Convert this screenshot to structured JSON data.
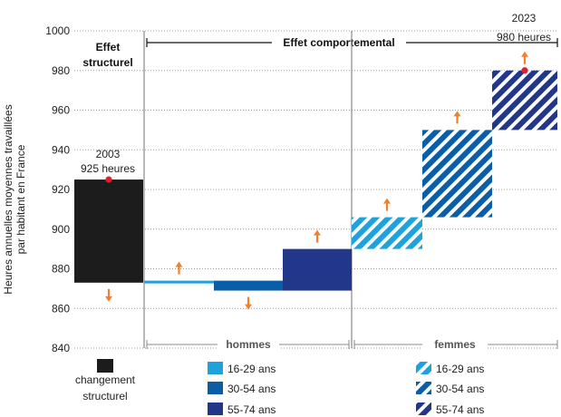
{
  "chart_data": {
    "type": "waterfall",
    "ylabel_line1": "Heures annuelles moyennes travaillées",
    "ylabel_line2": "par habitant en France",
    "ylim": [
      840,
      1000
    ],
    "yticks": [
      840,
      860,
      880,
      900,
      920,
      940,
      960,
      980,
      1000
    ],
    "grid": "horizontal dotted",
    "headers": {
      "structural_line1": "Effet",
      "structural_line2": "structurel",
      "behavioral": "Effet comportemental"
    },
    "groups": {
      "men": "hommes",
      "women": "femmes"
    },
    "start": {
      "label_year": "2003",
      "label_hours": "925 heures",
      "value": 925
    },
    "end": {
      "label_year": "2023",
      "label_hours": "980 heures",
      "value": 980
    },
    "steps": [
      {
        "key": "structurel",
        "from": 925,
        "to": 873,
        "color": "#1c1c1c",
        "pattern": "solid",
        "direction": "down"
      },
      {
        "key": "hommes_16_29",
        "from": 873,
        "to": 874,
        "color": "#1fa2dc",
        "pattern": "solid",
        "direction": "up"
      },
      {
        "key": "hommes_30_54",
        "from": 874,
        "to": 869,
        "color": "#0a5ea8",
        "pattern": "solid",
        "direction": "down"
      },
      {
        "key": "hommes_55_74",
        "from": 869,
        "to": 890,
        "color": "#22368a",
        "pattern": "solid",
        "direction": "up"
      },
      {
        "key": "femmes_16_29",
        "from": 890,
        "to": 906,
        "color": "#1fa2dc",
        "pattern": "hatched",
        "direction": "up"
      },
      {
        "key": "femmes_30_54",
        "from": 906,
        "to": 950,
        "color": "#0a5ea8",
        "pattern": "hatched",
        "direction": "up"
      },
      {
        "key": "femmes_55_74",
        "from": 950,
        "to": 980,
        "color": "#22368a",
        "pattern": "hatched",
        "direction": "up"
      }
    ],
    "legend": {
      "structural_line1": "changement",
      "structural_line2": "structurel",
      "men": [
        {
          "label": "16-29 ans",
          "color": "#1fa2dc",
          "pattern": "solid"
        },
        {
          "label": "30-54 ans",
          "color": "#0a5ea8",
          "pattern": "solid"
        },
        {
          "label": "55-74 ans",
          "color": "#22368a",
          "pattern": "solid"
        }
      ],
      "women": [
        {
          "label": "16-29 ans",
          "color": "#1fa2dc",
          "pattern": "hatched"
        },
        {
          "label": "30-54 ans",
          "color": "#0a5ea8",
          "pattern": "hatched"
        },
        {
          "label": "55-74 ans",
          "color": "#22368a",
          "pattern": "hatched"
        }
      ]
    },
    "colors": {
      "structural": "#1c1c1c",
      "arrow": "#f07f2e",
      "marker": "#e0202a",
      "separator": "#888888"
    }
  }
}
